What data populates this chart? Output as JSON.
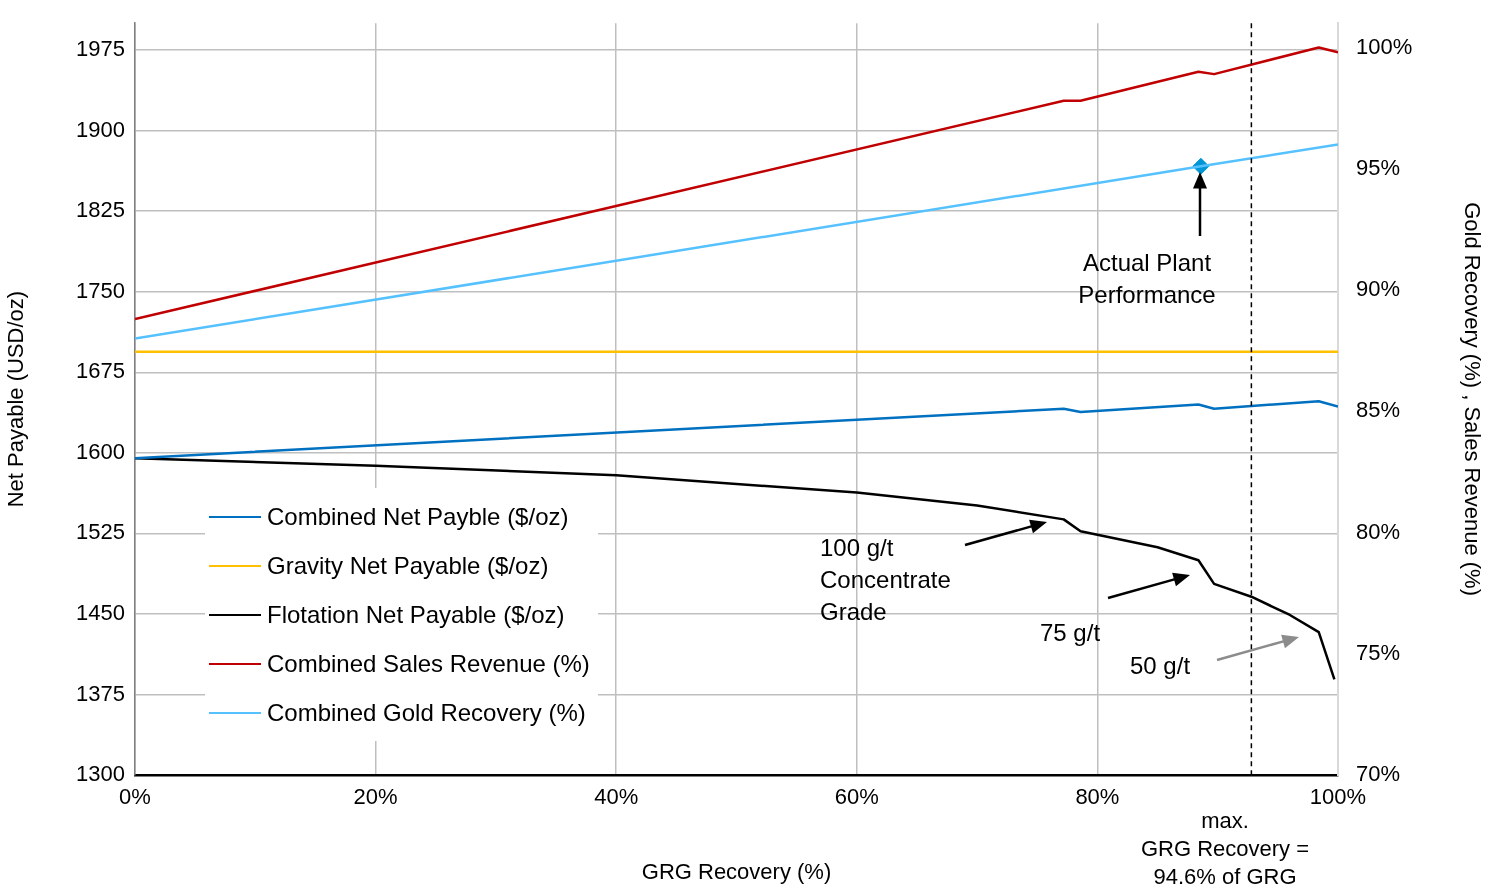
{
  "chart_data": {
    "type": "line",
    "xlabel": "GRG Recovery (%)",
    "ylabel": "Net Payable (USD/oz)",
    "y2label": "Gold Recovery (%) , Sales Revenue (%)",
    "xlim": [
      0,
      100
    ],
    "xticks": [
      {
        "value": 0,
        "label": "0%"
      },
      {
        "value": 20,
        "label": "20%"
      },
      {
        "value": 40,
        "label": "40%"
      },
      {
        "value": 60,
        "label": "60%"
      },
      {
        "value": 80,
        "label": "80%"
      },
      {
        "value": 100,
        "label": "100%"
      }
    ],
    "ylim": [
      1300,
      2000
    ],
    "yticks": [
      1300,
      1375,
      1450,
      1525,
      1600,
      1675,
      1750,
      1825,
      1900,
      1975
    ],
    "y2lim": [
      70,
      101
    ],
    "y2ticks": [
      {
        "value": 70,
        "label": "70%"
      },
      {
        "value": 75,
        "label": "75%"
      },
      {
        "value": 80,
        "label": "80%"
      },
      {
        "value": 85,
        "label": "85%"
      },
      {
        "value": 90,
        "label": "90%"
      },
      {
        "value": 95,
        "label": "95%"
      },
      {
        "value": 100,
        "label": "100%"
      }
    ],
    "grid": true,
    "legend": "bottom left",
    "marker": "none",
    "line_style": "solid",
    "series": [
      {
        "name": "Combined Net Payble ($/oz)",
        "color": "#0070c0",
        "x": [
          0,
          77.2,
          78.6,
          88.4,
          89.7,
          98.4,
          100
        ],
        "values": [
          1595,
          1641,
          1638,
          1645,
          1641,
          1648,
          1643
        ]
      },
      {
        "name": "Gravity Net Payable ($/oz)",
        "color": "#ffc000",
        "x": [
          0,
          100
        ],
        "values": [
          1694,
          1694
        ]
      },
      {
        "name": "Flotation Net Payable ($/oz)",
        "color": "#000000",
        "x": [
          0,
          20,
          40,
          60,
          70,
          77.2,
          78.6,
          85,
          88.4,
          89.7,
          92.8,
          96,
          98.4,
          99.7
        ],
        "values": [
          1595,
          1588,
          1579,
          1563,
          1551,
          1538,
          1527,
          1512,
          1500,
          1478,
          1466,
          1449,
          1433,
          1389
        ]
      },
      {
        "name": "Combined Sales Revenue (%)",
        "color": "#c00000",
        "axis": "y2",
        "x": [
          0,
          77.2,
          78.6,
          88.4,
          89.7,
          98.4,
          100
        ],
        "values": [
          88.8,
          97.8,
          97.8,
          99.0,
          98.9,
          100.0,
          99.8
        ]
      },
      {
        "name": "Combined Gold Recovery (%)",
        "color": "#56c1ff",
        "axis": "y2",
        "x": [
          0,
          88.6,
          100
        ],
        "values": [
          88.0,
          95.1,
          96.0
        ]
      },
      {
        "type": "scatter",
        "color": "#0096d6",
        "axis": "y2",
        "marker": "diamond",
        "x": [
          88.6
        ],
        "values": [
          95.1
        ]
      }
    ],
    "ref_lines": [
      {
        "axis": "x",
        "value": 92.8,
        "color": "#000000",
        "line_style": "dashed"
      }
    ],
    "annotations": [
      "Actual Plant\nPerformance",
      "100 g/t\nConcentrate\nGrade",
      "75 g/t",
      "50 g/t",
      "max.\nGRG Recovery =\n94.6% of GRG"
    ]
  }
}
